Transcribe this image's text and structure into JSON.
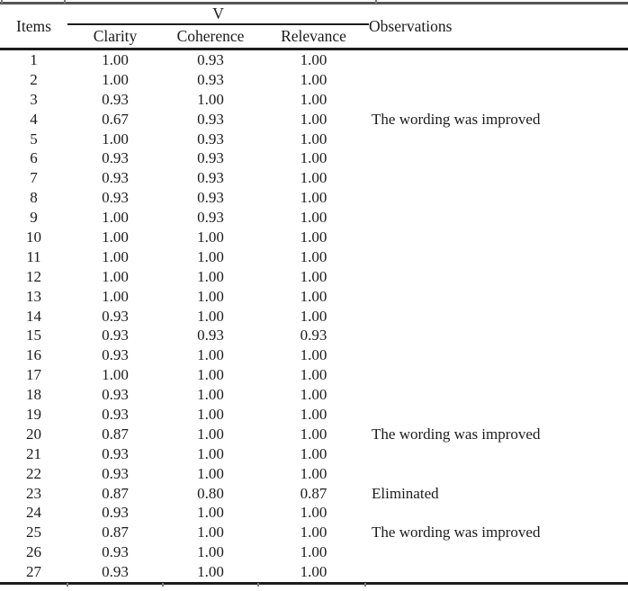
{
  "table": {
    "headers": {
      "items": "Items",
      "v_group": "V",
      "clarity": "Clarity",
      "coherence": "Coherence",
      "relevance": "Relevance",
      "observations": "Observations"
    },
    "rows": [
      {
        "item": "1",
        "clarity": "1.00",
        "coherence": "0.93",
        "relevance": "1.00",
        "observation": ""
      },
      {
        "item": "2",
        "clarity": "1.00",
        "coherence": "0.93",
        "relevance": "1.00",
        "observation": ""
      },
      {
        "item": "3",
        "clarity": "0.93",
        "coherence": "1.00",
        "relevance": "1.00",
        "observation": ""
      },
      {
        "item": "4",
        "clarity": "0.67",
        "coherence": "0.93",
        "relevance": "1.00",
        "observation": "The wording was improved"
      },
      {
        "item": "5",
        "clarity": "1.00",
        "coherence": "0.93",
        "relevance": "1.00",
        "observation": ""
      },
      {
        "item": "6",
        "clarity": "0.93",
        "coherence": "0.93",
        "relevance": "1.00",
        "observation": ""
      },
      {
        "item": "7",
        "clarity": "0.93",
        "coherence": "0.93",
        "relevance": "1.00",
        "observation": ""
      },
      {
        "item": "8",
        "clarity": "0.93",
        "coherence": "0.93",
        "relevance": "1.00",
        "observation": ""
      },
      {
        "item": "9",
        "clarity": "1.00",
        "coherence": "0.93",
        "relevance": "1.00",
        "observation": ""
      },
      {
        "item": "10",
        "clarity": "1.00",
        "coherence": "1.00",
        "relevance": "1.00",
        "observation": ""
      },
      {
        "item": "11",
        "clarity": "1.00",
        "coherence": "1.00",
        "relevance": "1.00",
        "observation": ""
      },
      {
        "item": "12",
        "clarity": "1.00",
        "coherence": "1.00",
        "relevance": "1.00",
        "observation": ""
      },
      {
        "item": "13",
        "clarity": "1.00",
        "coherence": "1.00",
        "relevance": "1.00",
        "observation": ""
      },
      {
        "item": "14",
        "clarity": "0.93",
        "coherence": "1.00",
        "relevance": "1.00",
        "observation": ""
      },
      {
        "item": "15",
        "clarity": "0.93",
        "coherence": "0.93",
        "relevance": "0.93",
        "observation": ""
      },
      {
        "item": "16",
        "clarity": "0.93",
        "coherence": "1.00",
        "relevance": "1.00",
        "observation": ""
      },
      {
        "item": "17",
        "clarity": "1.00",
        "coherence": "1.00",
        "relevance": "1.00",
        "observation": ""
      },
      {
        "item": "18",
        "clarity": "0.93",
        "coherence": "1.00",
        "relevance": "1.00",
        "observation": ""
      },
      {
        "item": "19",
        "clarity": "0.93",
        "coherence": "1.00",
        "relevance": "1.00",
        "observation": ""
      },
      {
        "item": "20",
        "clarity": "0.87",
        "coherence": "1.00",
        "relevance": "1.00",
        "observation": "The wording was improved"
      },
      {
        "item": "21",
        "clarity": "0.93",
        "coherence": "1.00",
        "relevance": "1.00",
        "observation": ""
      },
      {
        "item": "22",
        "clarity": "0.93",
        "coherence": "1.00",
        "relevance": "1.00",
        "observation": ""
      },
      {
        "item": "23",
        "clarity": "0.87",
        "coherence": "0.80",
        "relevance": "0.87",
        "observation": "Eliminated"
      },
      {
        "item": "24",
        "clarity": "0.93",
        "coherence": "1.00",
        "relevance": "1.00",
        "observation": ""
      },
      {
        "item": "25",
        "clarity": "0.87",
        "coherence": "1.00",
        "relevance": "1.00",
        "observation": "The wording was improved"
      },
      {
        "item": "26",
        "clarity": "0.93",
        "coherence": "1.00",
        "relevance": "1.00",
        "observation": ""
      },
      {
        "item": "27",
        "clarity": "0.93",
        "coherence": "1.00",
        "relevance": "1.00",
        "observation": ""
      }
    ]
  },
  "colors": {
    "rule_dark": "#1c1c1c",
    "rule_top": "#555555",
    "text": "#1b1b1b",
    "background": "#ffffff"
  }
}
